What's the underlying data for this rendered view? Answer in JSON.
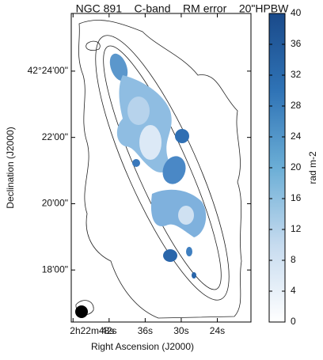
{
  "chart_data": {
    "type": "image",
    "title": "NGC 891    C-band    RM error    20\"HPBW",
    "x_label": "Right Ascension (J2000)",
    "y_label": "Declination (J2000)",
    "xlim": [
      48.3,
      18.4
    ],
    "xticks": [
      {
        "value": 48,
        "label": "2h22m48s"
      },
      {
        "value": 42,
        "label": "42s"
      },
      {
        "value": 36,
        "label": "36s"
      },
      {
        "value": 30,
        "label": "30s"
      },
      {
        "value": 24,
        "label": "24s"
      }
    ],
    "ylim": [
      16.43,
      25.74
    ],
    "yticks": [
      {
        "value": 24,
        "label": "42°24'00\""
      },
      {
        "value": 22,
        "label": "22'00\""
      },
      {
        "value": 20,
        "label": "20'00\""
      },
      {
        "value": 18,
        "label": "18'00\""
      }
    ],
    "colorbar": {
      "label": "rad m-2",
      "lim": [
        0,
        40
      ],
      "ticks": [
        0,
        4,
        8,
        12,
        16,
        20,
        24,
        28,
        32,
        36,
        40
      ],
      "colors": [
        "#ffffff",
        "#c6dbef",
        "#6baed6",
        "#2f73b6",
        "#1a4a8a"
      ]
    }
  }
}
